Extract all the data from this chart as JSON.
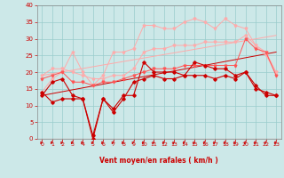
{
  "x": [
    0,
    1,
    2,
    3,
    4,
    5,
    6,
    7,
    8,
    9,
    10,
    11,
    12,
    13,
    14,
    15,
    16,
    17,
    18,
    19,
    20,
    21,
    22,
    23
  ],
  "line1": [
    13,
    17,
    18,
    13,
    12,
    0,
    12,
    9,
    13,
    13,
    23,
    20,
    20,
    20,
    19,
    23,
    22,
    21,
    21,
    19,
    20,
    16,
    13,
    13
  ],
  "line2": [
    14,
    11,
    12,
    12,
    12,
    1,
    12,
    8,
    12,
    17,
    18,
    19,
    18,
    18,
    19,
    19,
    19,
    18,
    19,
    18,
    20,
    15,
    14,
    13
  ],
  "line3": [
    18,
    19,
    20,
    17,
    17,
    16,
    17,
    17,
    18,
    19,
    20,
    21,
    21,
    21,
    22,
    22,
    22,
    22,
    22,
    22,
    30,
    27,
    26,
    19
  ],
  "line4": [
    19,
    21,
    21,
    20,
    19,
    18,
    18,
    19,
    19,
    21,
    26,
    27,
    27,
    28,
    28,
    28,
    29,
    29,
    29,
    29,
    31,
    28,
    25,
    20
  ],
  "line5_light": [
    14,
    18,
    20,
    26,
    20,
    16,
    19,
    26,
    26,
    27,
    34,
    34,
    33,
    33,
    35,
    36,
    35,
    33,
    36,
    34,
    33,
    28,
    26,
    20
  ],
  "trend1_x": [
    0,
    23
  ],
  "trend1_y": [
    13,
    26
  ],
  "trend2_x": [
    0,
    23
  ],
  "trend2_y": [
    19,
    31
  ],
  "bg_color": "#cce8e8",
  "grid_color": "#99cccc",
  "line_color_dark": "#cc0000",
  "line_color_mid": "#ff5555",
  "line_color_light": "#ffaaaa",
  "xlabel": "Vent moyen/en rafales ( km/h )",
  "ylim": [
    0,
    40
  ],
  "xlim": [
    0,
    23
  ],
  "yticks": [
    0,
    5,
    10,
    15,
    20,
    25,
    30,
    35,
    40
  ]
}
